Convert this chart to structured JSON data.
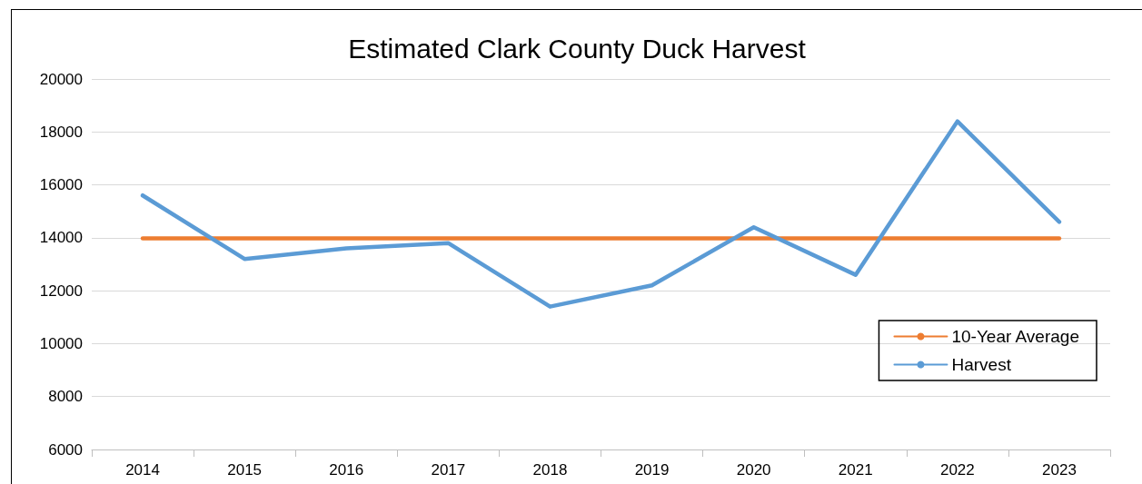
{
  "chart_data": {
    "type": "line",
    "title": "Estimated Clark County Duck Harvest",
    "categories": [
      "2014",
      "2015",
      "2016",
      "2017",
      "2018",
      "2019",
      "2020",
      "2021",
      "2022",
      "2023"
    ],
    "series": [
      {
        "name": "10-Year Average",
        "color": "#ed7d31",
        "values": [
          13980,
          13980,
          13980,
          13980,
          13980,
          13980,
          13980,
          13980,
          13980,
          13980
        ]
      },
      {
        "name": "Harvest",
        "color": "#5b9bd5",
        "values": [
          15600,
          13200,
          13600,
          13800,
          11400,
          12200,
          14400,
          12600,
          18400,
          14600
        ]
      }
    ],
    "ylim": [
      6000,
      20000
    ],
    "yticks": [
      6000,
      8000,
      10000,
      12000,
      14000,
      16000,
      18000,
      20000
    ],
    "grid": "y",
    "legend": "right"
  }
}
